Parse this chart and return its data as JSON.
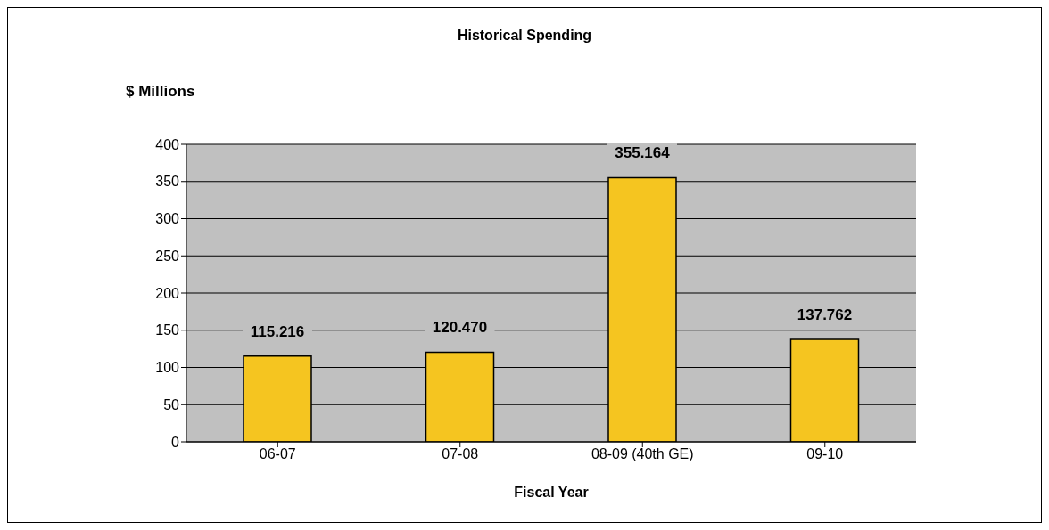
{
  "chart_data": {
    "type": "bar",
    "title": "Historical Spending",
    "xlabel": "Fiscal Year",
    "ylabel": "$ Millions",
    "categories": [
      "06-07",
      "07-08",
      "08-09 (40th GE)",
      "09-10"
    ],
    "values": [
      115.216,
      120.47,
      355.164,
      137.762
    ],
    "value_labels": [
      "115.216",
      "120.470",
      "355.164",
      "137.762"
    ],
    "color": "#f5c520",
    "ylim": [
      0,
      400
    ],
    "yticks": [
      0,
      50,
      100,
      150,
      200,
      250,
      300,
      350,
      400
    ],
    "grid": "y",
    "legend": false
  }
}
